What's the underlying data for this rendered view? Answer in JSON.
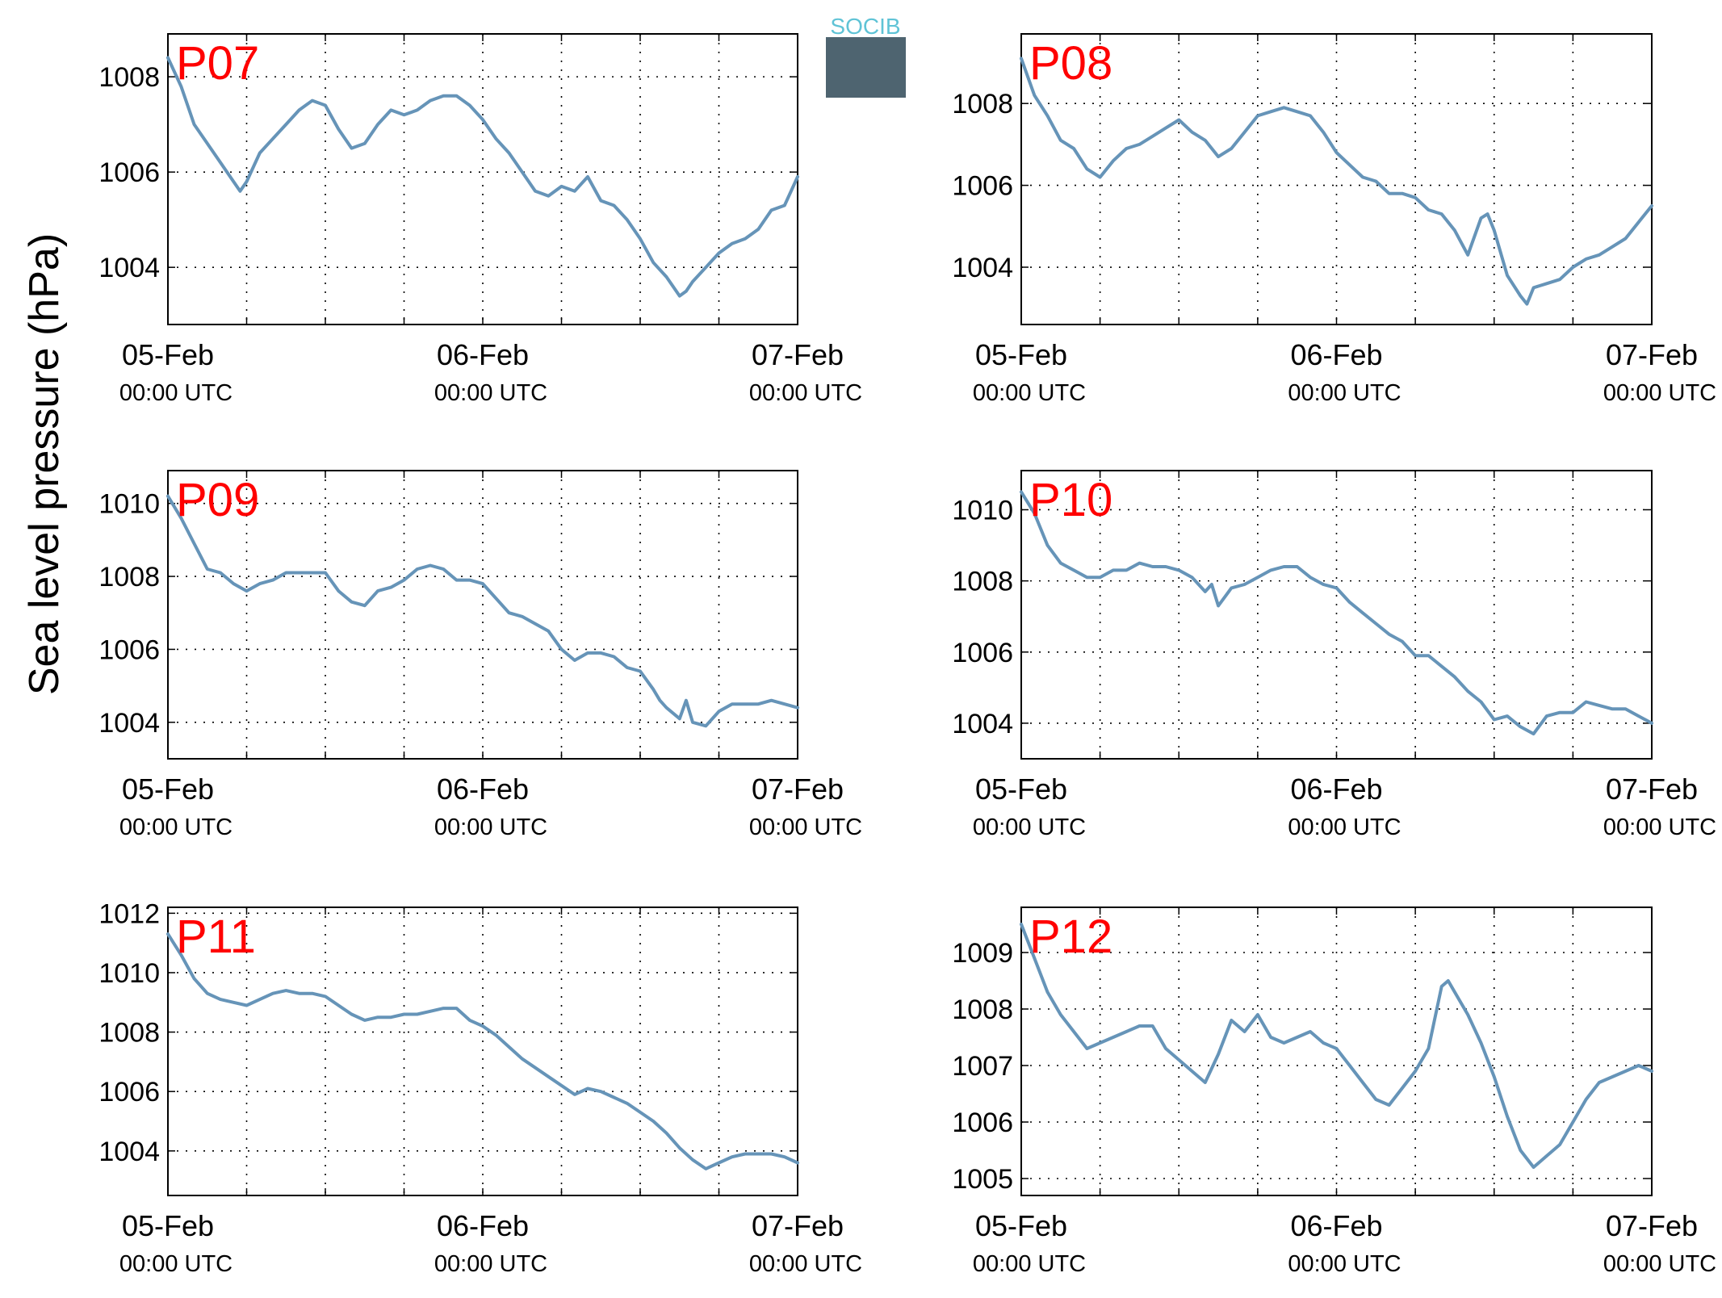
{
  "figure": {
    "ylabel": "Sea level pressure (hPa)",
    "logo_text": "SOCIB",
    "line_color": "#6694b8",
    "label_color": "#ff0000",
    "x_axis": {
      "type": "datetime",
      "range": [
        "05-Feb 00:00 UTC",
        "07-Feb 00:00 UTC"
      ],
      "major_ticks": [
        {
          "x": 0,
          "label": "05-Feb",
          "sublabel": "00:00 UTC"
        },
        {
          "x": 24,
          "label": "06-Feb",
          "sublabel": "00:00 UTC"
        },
        {
          "x": 48,
          "label": "07-Feb",
          "sublabel": "00:00 UTC"
        }
      ],
      "grid_hours": [
        6,
        12,
        18,
        24,
        30,
        36,
        42
      ]
    }
  },
  "chart_data": [
    {
      "type": "line",
      "title": "P07",
      "ylim": [
        1002.8,
        1008.9
      ],
      "yticks": [
        1004,
        1006,
        1008
      ],
      "grid": true,
      "x": [
        0,
        1,
        2,
        3,
        4,
        5,
        5.5,
        6,
        7,
        8,
        9,
        10,
        11,
        12,
        13,
        14,
        15,
        16,
        17,
        18,
        19,
        20,
        21,
        22,
        23,
        24,
        25,
        26,
        27,
        28,
        29,
        30,
        31,
        32,
        33,
        34,
        35,
        36,
        37,
        38,
        39,
        39.5,
        40,
        41,
        42,
        43,
        44,
        45,
        46,
        47,
        48
      ],
      "values": [
        1008.4,
        1007.8,
        1007.0,
        1006.6,
        1006.2,
        1005.8,
        1005.6,
        1005.8,
        1006.4,
        1006.7,
        1007.0,
        1007.3,
        1007.5,
        1007.4,
        1006.9,
        1006.5,
        1006.6,
        1007.0,
        1007.3,
        1007.2,
        1007.3,
        1007.5,
        1007.6,
        1007.6,
        1007.4,
        1007.1,
        1006.7,
        1006.4,
        1006.0,
        1005.6,
        1005.5,
        1005.7,
        1005.6,
        1005.9,
        1005.4,
        1005.3,
        1005.0,
        1004.6,
        1004.1,
        1003.8,
        1003.4,
        1003.5,
        1003.7,
        1004.0,
        1004.3,
        1004.5,
        1004.6,
        1004.8,
        1005.2,
        1005.3,
        1005.9
      ]
    },
    {
      "type": "line",
      "title": "P08",
      "ylim": [
        1002.6,
        1009.7
      ],
      "yticks": [
        1004,
        1006,
        1008
      ],
      "grid": true,
      "x": [
        0,
        1,
        2,
        3,
        4,
        5,
        6,
        7,
        8,
        9,
        10,
        11,
        12,
        13,
        14,
        15,
        16,
        17,
        18,
        19,
        20,
        21,
        22,
        23,
        24,
        25,
        26,
        27,
        28,
        29,
        30,
        31,
        32,
        33,
        34,
        35,
        35.5,
        36,
        37,
        38,
        38.5,
        39,
        40,
        41,
        42,
        43,
        44,
        45,
        46,
        47,
        48
      ],
      "values": [
        1009.1,
        1008.2,
        1007.7,
        1007.1,
        1006.9,
        1006.4,
        1006.2,
        1006.6,
        1006.9,
        1007.0,
        1007.2,
        1007.4,
        1007.6,
        1007.3,
        1007.1,
        1006.7,
        1006.9,
        1007.3,
        1007.7,
        1007.8,
        1007.9,
        1007.8,
        1007.7,
        1007.3,
        1006.8,
        1006.5,
        1006.2,
        1006.1,
        1005.8,
        1005.8,
        1005.7,
        1005.4,
        1005.3,
        1004.9,
        1004.3,
        1005.2,
        1005.3,
        1004.9,
        1003.8,
        1003.3,
        1003.1,
        1003.5,
        1003.6,
        1003.7,
        1004.0,
        1004.2,
        1004.3,
        1004.5,
        1004.7,
        1005.1,
        1005.5
      ]
    },
    {
      "type": "line",
      "title": "P09",
      "ylim": [
        1003.0,
        1010.9
      ],
      "yticks": [
        1004,
        1006,
        1008,
        1010
      ],
      "grid": true,
      "x": [
        0,
        1,
        2,
        3,
        4,
        5,
        6,
        7,
        8,
        9,
        10,
        11,
        12,
        13,
        14,
        15,
        16,
        17,
        18,
        19,
        20,
        21,
        22,
        23,
        24,
        25,
        26,
        27,
        28,
        29,
        30,
        31,
        32,
        33,
        34,
        35,
        36,
        37,
        37.5,
        38,
        39,
        39.5,
        40,
        41,
        42,
        43,
        44,
        45,
        46,
        47,
        48
      ],
      "values": [
        1010.2,
        1009.6,
        1008.9,
        1008.2,
        1008.1,
        1007.8,
        1007.6,
        1007.8,
        1007.9,
        1008.1,
        1008.1,
        1008.1,
        1008.1,
        1007.6,
        1007.3,
        1007.2,
        1007.6,
        1007.7,
        1007.9,
        1008.2,
        1008.3,
        1008.2,
        1007.9,
        1007.9,
        1007.8,
        1007.4,
        1007.0,
        1006.9,
        1006.7,
        1006.5,
        1006.0,
        1005.7,
        1005.9,
        1005.9,
        1005.8,
        1005.5,
        1005.4,
        1004.9,
        1004.6,
        1004.4,
        1004.1,
        1004.6,
        1004.0,
        1003.9,
        1004.3,
        1004.5,
        1004.5,
        1004.5,
        1004.6,
        1004.5,
        1004.4
      ]
    },
    {
      "type": "line",
      "title": "P10",
      "ylim": [
        1003.0,
        1011.1
      ],
      "yticks": [
        1004,
        1006,
        1008,
        1010
      ],
      "grid": true,
      "x": [
        0,
        1,
        2,
        3,
        4,
        5,
        6,
        7,
        8,
        9,
        10,
        11,
        12,
        13,
        14,
        14.5,
        15,
        16,
        17,
        18,
        19,
        20,
        21,
        22,
        23,
        24,
        25,
        26,
        27,
        28,
        29,
        30,
        31,
        32,
        33,
        34,
        35,
        36,
        37,
        38,
        39,
        40,
        41,
        42,
        43,
        44,
        45,
        46,
        47,
        48
      ],
      "values": [
        1010.5,
        1009.9,
        1009.0,
        1008.5,
        1008.3,
        1008.1,
        1008.1,
        1008.3,
        1008.3,
        1008.5,
        1008.4,
        1008.4,
        1008.3,
        1008.1,
        1007.7,
        1007.9,
        1007.3,
        1007.8,
        1007.9,
        1008.1,
        1008.3,
        1008.4,
        1008.4,
        1008.1,
        1007.9,
        1007.8,
        1007.4,
        1007.1,
        1006.8,
        1006.5,
        1006.3,
        1005.9,
        1005.9,
        1005.6,
        1005.3,
        1004.9,
        1004.6,
        1004.1,
        1004.2,
        1003.9,
        1003.7,
        1004.2,
        1004.3,
        1004.3,
        1004.6,
        1004.5,
        1004.4,
        1004.4,
        1004.2,
        1004.0
      ]
    },
    {
      "type": "line",
      "title": "P11",
      "ylim": [
        1002.5,
        1012.2
      ],
      "yticks": [
        1004,
        1006,
        1008,
        1010,
        1012
      ],
      "grid": true,
      "x": [
        0,
        1,
        2,
        3,
        4,
        5,
        6,
        7,
        8,
        9,
        10,
        11,
        12,
        13,
        14,
        15,
        16,
        17,
        18,
        19,
        20,
        21,
        22,
        23,
        24,
        25,
        26,
        27,
        28,
        29,
        30,
        31,
        32,
        33,
        34,
        35,
        36,
        37,
        38,
        39,
        40,
        41,
        42,
        43,
        44,
        45,
        46,
        47,
        48
      ],
      "values": [
        1011.3,
        1010.6,
        1009.8,
        1009.3,
        1009.1,
        1009.0,
        1008.9,
        1009.1,
        1009.3,
        1009.4,
        1009.3,
        1009.3,
        1009.2,
        1008.9,
        1008.6,
        1008.4,
        1008.5,
        1008.5,
        1008.6,
        1008.6,
        1008.7,
        1008.8,
        1008.8,
        1008.4,
        1008.2,
        1007.9,
        1007.5,
        1007.1,
        1006.8,
        1006.5,
        1006.2,
        1005.9,
        1006.1,
        1006.0,
        1005.8,
        1005.6,
        1005.3,
        1005.0,
        1004.6,
        1004.1,
        1003.7,
        1003.4,
        1003.6,
        1003.8,
        1003.9,
        1003.9,
        1003.9,
        1003.8,
        1003.6
      ]
    },
    {
      "type": "line",
      "title": "P12",
      "ylim": [
        1004.7,
        1009.8
      ],
      "yticks": [
        1005,
        1006,
        1007,
        1008,
        1009
      ],
      "grid": true,
      "x": [
        0,
        1,
        2,
        3,
        4,
        5,
        6,
        7,
        8,
        9,
        10,
        11,
        12,
        13,
        14,
        15,
        16,
        17,
        18,
        19,
        20,
        21,
        22,
        23,
        24,
        25,
        26,
        27,
        28,
        29,
        30,
        31,
        32,
        32.5,
        33,
        34,
        35,
        36,
        37,
        38,
        39,
        40,
        41,
        42,
        43,
        44,
        45,
        46,
        47,
        48
      ],
      "values": [
        1009.5,
        1008.9,
        1008.3,
        1007.9,
        1007.6,
        1007.3,
        1007.4,
        1007.5,
        1007.6,
        1007.7,
        1007.7,
        1007.3,
        1007.1,
        1006.9,
        1006.7,
        1007.2,
        1007.8,
        1007.6,
        1007.9,
        1007.5,
        1007.4,
        1007.5,
        1007.6,
        1007.4,
        1007.3,
        1007.0,
        1006.7,
        1006.4,
        1006.3,
        1006.6,
        1006.9,
        1007.3,
        1008.4,
        1008.5,
        1008.3,
        1007.9,
        1007.4,
        1006.8,
        1006.1,
        1005.5,
        1005.2,
        1005.4,
        1005.6,
        1006.0,
        1006.4,
        1006.7,
        1006.8,
        1006.9,
        1007.0,
        1006.9
      ]
    }
  ]
}
